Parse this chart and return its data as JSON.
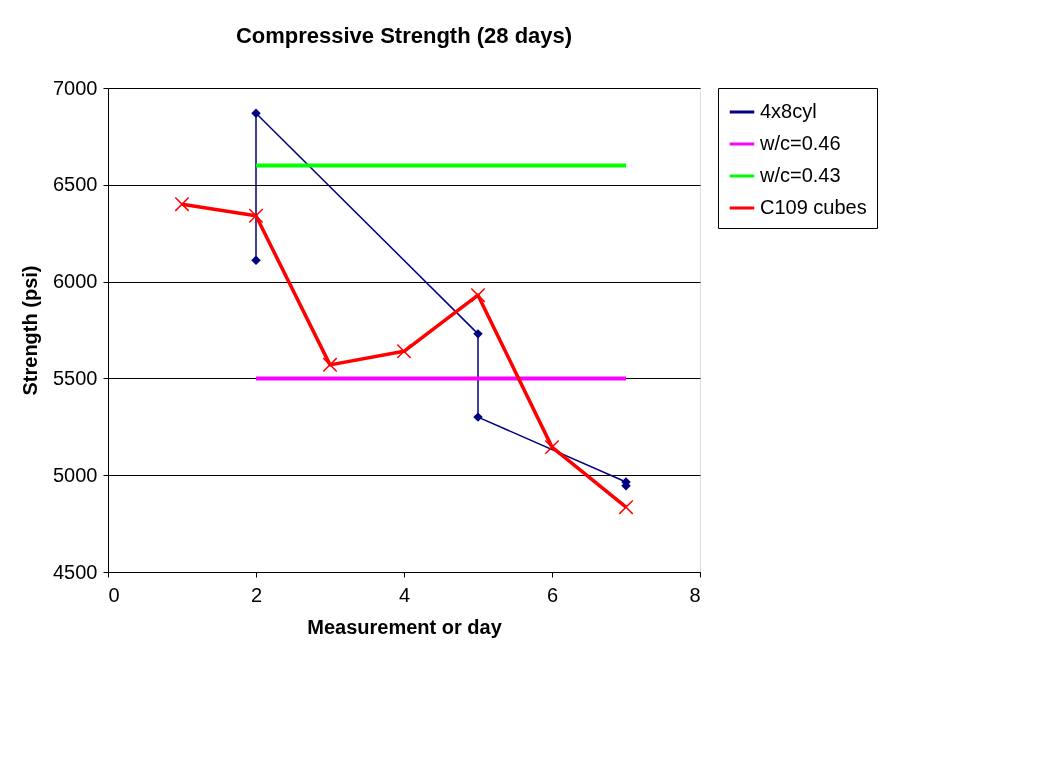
{
  "chart_data": {
    "type": "line",
    "title": "Compressive Strength (28 days)",
    "xlabel": "Measurement or day",
    "ylabel": "Strength (psi)",
    "xlim": [
      0,
      8
    ],
    "xticks": [
      0,
      2,
      4,
      6,
      8
    ],
    "ylim": [
      4500,
      7000
    ],
    "yticks": [
      4500,
      5000,
      5500,
      6000,
      6500,
      7000
    ],
    "grid": "y",
    "legend": "right",
    "line_style": "solid",
    "series": [
      {
        "name": "4x8cyl",
        "color": "#000080",
        "marker": "diamond",
        "x": [
          2,
          2,
          5,
          5,
          7,
          7
        ],
        "values": [
          6110,
          6870,
          5730,
          5300,
          4965,
          4945
        ]
      },
      {
        "name": "w/c=0.46",
        "color": "#ff00ff",
        "marker": "none",
        "x": [
          2,
          7
        ],
        "values": [
          5500,
          5500
        ]
      },
      {
        "name": "w/c=0.43",
        "color": "#00ff00",
        "marker": "none",
        "x": [
          2,
          7
        ],
        "values": [
          6600,
          6600
        ]
      },
      {
        "name": "C109 cubes",
        "color": "#ff0000",
        "marker": "cross",
        "x": [
          1,
          2,
          3,
          4,
          5,
          6,
          7
        ],
        "values": [
          6400,
          6340,
          5570,
          5640,
          5930,
          5145,
          4835
        ]
      }
    ]
  }
}
